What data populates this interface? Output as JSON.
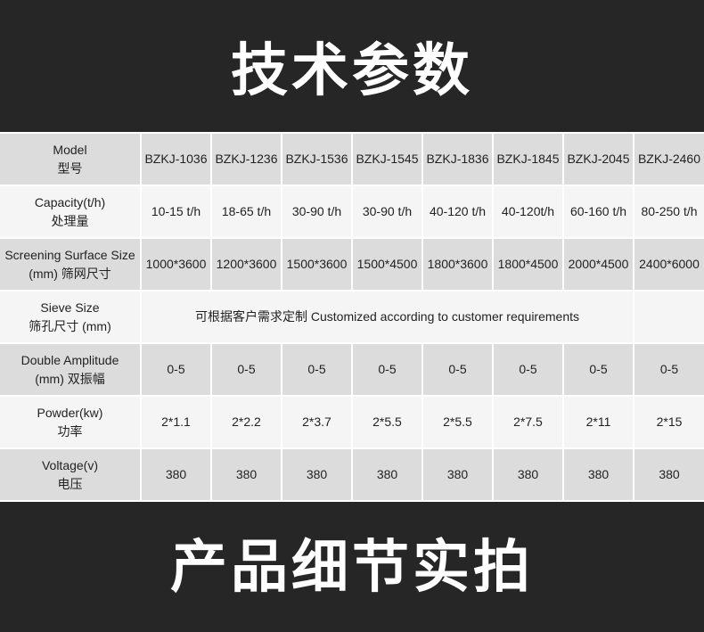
{
  "title_top": "技术参数",
  "title_bottom": "产品细节实拍",
  "colors": {
    "band": "#262626",
    "row_dark": "#dcdcdc",
    "row_light": "#f5f5f5"
  },
  "rows": [
    {
      "label_en": "Model",
      "label_cn": "型号",
      "values": [
        "BZKJ-1036",
        "BZKJ-1236",
        "BZKJ-1536",
        "BZKJ-1545",
        "BZKJ-1836",
        "BZKJ-1845",
        "BZKJ-2045",
        "BZKJ-2460"
      ]
    },
    {
      "label_en": "Capacity(t/h)",
      "label_cn": "处理量",
      "values": [
        "10-15 t/h",
        "18-65 t/h",
        "30-90 t/h",
        "30-90 t/h",
        "40-120 t/h",
        "40-120t/h",
        "60-160 t/h",
        "80-250 t/h"
      ]
    },
    {
      "label_en": "Screening Surface Size",
      "label_cn": "(mm) 筛网尺寸",
      "values": [
        "1000*3600",
        "1200*3600",
        "1500*3600",
        "1500*4500",
        "1800*3600",
        "1800*4500",
        "2000*4500",
        "2400*6000"
      ]
    },
    {
      "label_en": "Sieve Size",
      "label_cn": "筛孔尺寸 (mm)",
      "merged": "可根据客户需求定制 Customized according to customer requirements"
    },
    {
      "label_en": "Double Amplitude",
      "label_cn": "(mm) 双振幅",
      "values": [
        "0-5",
        "0-5",
        "0-5",
        "0-5",
        "0-5",
        "0-5",
        "0-5",
        "0-5"
      ]
    },
    {
      "label_en": "Powder(kw)",
      "label_cn": "功率",
      "values": [
        "2*1.1",
        "2*2.2",
        "2*3.7",
        "2*5.5",
        "2*5.5",
        "2*7.5",
        "2*11",
        "2*15"
      ]
    },
    {
      "label_en": "Voltage(v)",
      "label_cn": "电压",
      "values": [
        "380",
        "380",
        "380",
        "380",
        "380",
        "380",
        "380",
        "380"
      ]
    }
  ]
}
